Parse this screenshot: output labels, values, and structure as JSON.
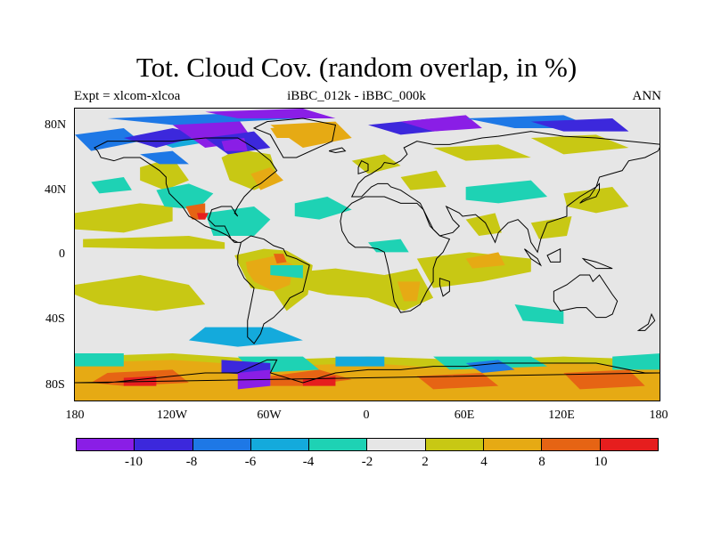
{
  "title": "Tot. Cloud Cov. (random overlap, in %)",
  "left_subtitle": "Expt = xlcom-xlcoa",
  "center_subtitle": "iBBC_012k - iBBC_000k",
  "right_subtitle": "ANN",
  "map": {
    "projection": "cylindrical-equidistant",
    "lon_range": [
      -180,
      180
    ],
    "lat_range": [
      -90,
      90
    ],
    "x_ticks": [
      "180",
      "120W",
      "60W",
      "0",
      "60E",
      "120E",
      "180"
    ],
    "y_ticks": [
      "80N",
      "40N",
      "0",
      "40S",
      "80S"
    ],
    "background_color": "#e6e6e6",
    "coastline_color": "#000000"
  },
  "colorbar": {
    "colors": [
      "#8a1ee6",
      "#3c28dc",
      "#1e78e6",
      "#14aadc",
      "#1ed2b4",
      "#e6e6e6",
      "#c8c814",
      "#e6aa14",
      "#e66414",
      "#e61e1e"
    ],
    "labels": [
      "-10",
      "-8",
      "-6",
      "-4",
      "-2",
      "2",
      "4",
      "8",
      "10"
    ]
  }
}
